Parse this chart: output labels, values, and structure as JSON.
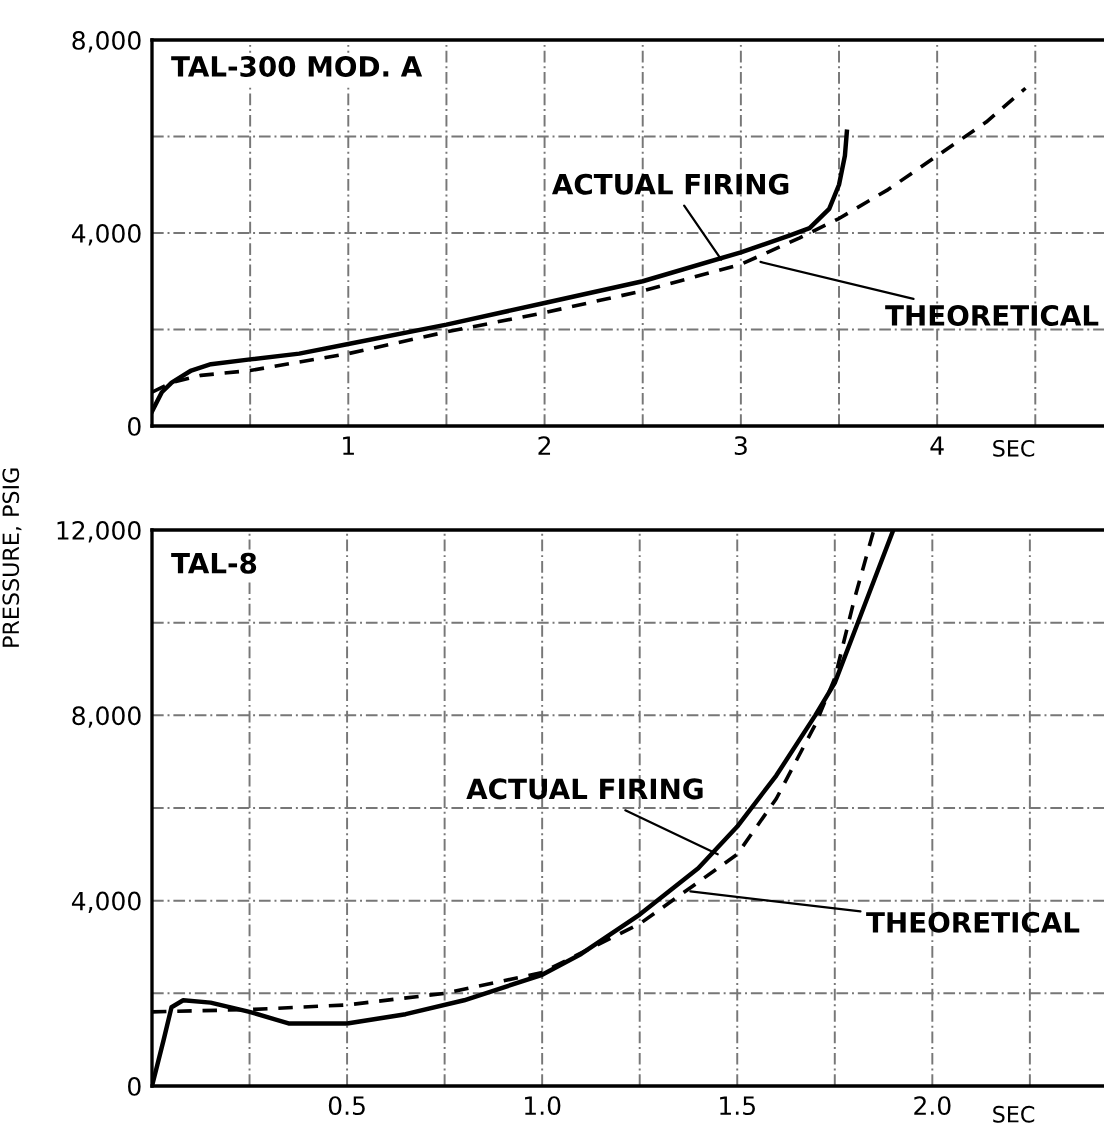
{
  "chart_data": [
    {
      "type": "line",
      "title": "TAL-300 MOD. A",
      "xlabel": "SEC",
      "legend": false,
      "grid": true,
      "xlim": [
        0,
        4.85
      ],
      "xticks": [
        {
          "value": 0.5,
          "label": null
        },
        1,
        {
          "value": 1.5,
          "label": null
        },
        2,
        {
          "value": 2.5,
          "label": null
        },
        3,
        {
          "value": 3.5,
          "label": null
        },
        4,
        {
          "value": 4.5,
          "label": null
        }
      ],
      "ylim": [
        0,
        8000
      ],
      "yticks": [
        {
          "value": 0,
          "label": "0"
        },
        {
          "value": 2000,
          "label": null
        },
        {
          "value": 4000,
          "label": "4,000"
        },
        {
          "value": 6000,
          "label": null
        },
        {
          "value": 8000,
          "label": "8,000"
        }
      ],
      "annotations": [
        {
          "text": "ACTUAL FIRING",
          "x": 2.9,
          "y": 3450
        },
        {
          "text": "THEORETICAL",
          "x": 3.1,
          "y": 3400
        }
      ],
      "series": [
        {
          "color": "#000000",
          "line_style": "solid",
          "x": [
            0,
            0.05,
            0.1,
            0.2,
            0.3,
            0.5,
            0.75,
            1,
            1.5,
            2,
            2.5,
            3,
            3.25,
            3.35,
            3.45,
            3.5,
            3.53,
            3.54
          ],
          "values": [
            300,
            700,
            900,
            1150,
            1280,
            1380,
            1500,
            1700,
            2100,
            2550,
            3000,
            3600,
            3950,
            4100,
            4500,
            5000,
            5600,
            6100
          ]
        },
        {
          "color": "#000000",
          "line_style": "dashed",
          "x": [
            0,
            0.1,
            0.25,
            0.5,
            1,
            1.5,
            2,
            2.5,
            3,
            3.3,
            3.5,
            3.75,
            4,
            4.25,
            4.45
          ],
          "values": [
            700,
            900,
            1050,
            1150,
            1500,
            1950,
            2350,
            2800,
            3350,
            3900,
            4300,
            4900,
            5600,
            6300,
            7000
          ]
        }
      ]
    },
    {
      "type": "line",
      "title": "TAL-8",
      "xlabel": "SEC",
      "ylabel": "PRESSURE, PSIG",
      "legend": false,
      "grid": true,
      "xlim": [
        0,
        2.44
      ],
      "xticks": [
        {
          "value": 0.25,
          "label": null
        },
        {
          "value": 0.5,
          "label": "0.5"
        },
        {
          "value": 0.75,
          "label": null
        },
        {
          "value": 1.0,
          "label": "1.0"
        },
        {
          "value": 1.25,
          "label": null
        },
        {
          "value": 1.5,
          "label": "1.5"
        },
        {
          "value": 1.75,
          "label": null
        },
        {
          "value": 2.0,
          "label": "2.0"
        },
        {
          "value": 2.25,
          "label": null
        }
      ],
      "ylim": [
        0,
        12000
      ],
      "yticks": [
        {
          "value": 0,
          "label": "0"
        },
        {
          "value": 2000,
          "label": null
        },
        {
          "value": 4000,
          "label": "4,000"
        },
        {
          "value": 6000,
          "label": null
        },
        {
          "value": 8000,
          "label": "8,000"
        },
        {
          "value": 10000,
          "label": null
        },
        {
          "value": 12000,
          "label": "12,000"
        }
      ],
      "annotations": [
        {
          "text": "ACTUAL FIRING",
          "x": 1.45,
          "y": 5000
        },
        {
          "text": "THEORETICAL",
          "x": 1.38,
          "y": 4200
        }
      ],
      "series": [
        {
          "color": "#000000",
          "line_style": "solid",
          "x": [
            0,
            0.03,
            0.05,
            0.08,
            0.15,
            0.25,
            0.35,
            0.5,
            0.65,
            0.8,
            1.0,
            1.1,
            1.25,
            1.4,
            1.5,
            1.6,
            1.7,
            1.75,
            1.8,
            1.85,
            1.9
          ],
          "values": [
            0,
            1000,
            1700,
            1850,
            1800,
            1600,
            1350,
            1350,
            1550,
            1850,
            2400,
            2850,
            3700,
            4700,
            5600,
            6700,
            8000,
            8700,
            9800,
            10900,
            12000
          ]
        },
        {
          "color": "#000000",
          "line_style": "dashed",
          "x": [
            0,
            0.25,
            0.5,
            0.75,
            1.0,
            1.25,
            1.5,
            1.6,
            1.7,
            1.75,
            1.8,
            1.85
          ],
          "values": [
            1600,
            1650,
            1750,
            2000,
            2450,
            3500,
            5000,
            6200,
            7800,
            8800,
            10500,
            12000
          ]
        }
      ]
    }
  ]
}
